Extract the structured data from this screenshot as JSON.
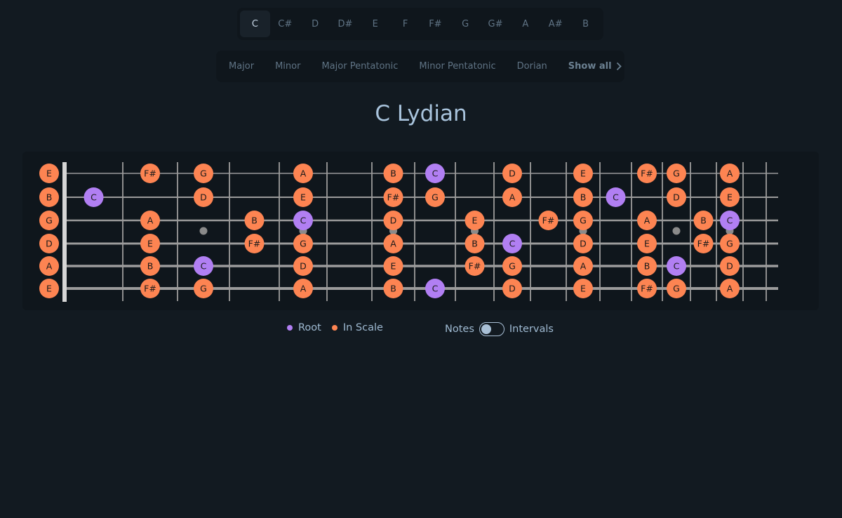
{
  "keys": {
    "items": [
      "C",
      "C#",
      "D",
      "D#",
      "E",
      "F",
      "F#",
      "G",
      "G#",
      "A",
      "A#",
      "B"
    ],
    "selected": "C"
  },
  "scales": {
    "items": [
      "Major",
      "Minor",
      "Major Pentatonic",
      "Minor Pentatonic",
      "Dorian"
    ],
    "show_all": "Show all"
  },
  "title": "C Lydian",
  "fretboard": {
    "chromatic": [
      "C",
      "C#",
      "D",
      "D#",
      "E",
      "F",
      "F#",
      "G",
      "G#",
      "A",
      "A#",
      "B"
    ],
    "tuning_high_to_low": [
      "E",
      "B",
      "G",
      "D",
      "A",
      "E"
    ],
    "scale_notes": [
      "C",
      "D",
      "E",
      "F#",
      "G",
      "A",
      "B"
    ],
    "root": "C",
    "frets": 17,
    "inlay_frets": [
      3,
      5,
      7,
      9,
      12,
      15,
      17
    ],
    "colors": {
      "root": "#b17ff3",
      "in_scale": "#fd8452",
      "string": "#9b9b9b",
      "fret": "#8e8e8e",
      "nut": "#d6d6d6"
    }
  },
  "legend": {
    "root": "Root",
    "in_scale": "In Scale"
  },
  "display_toggle": {
    "left": "Notes",
    "right": "Intervals",
    "value": "Notes"
  }
}
